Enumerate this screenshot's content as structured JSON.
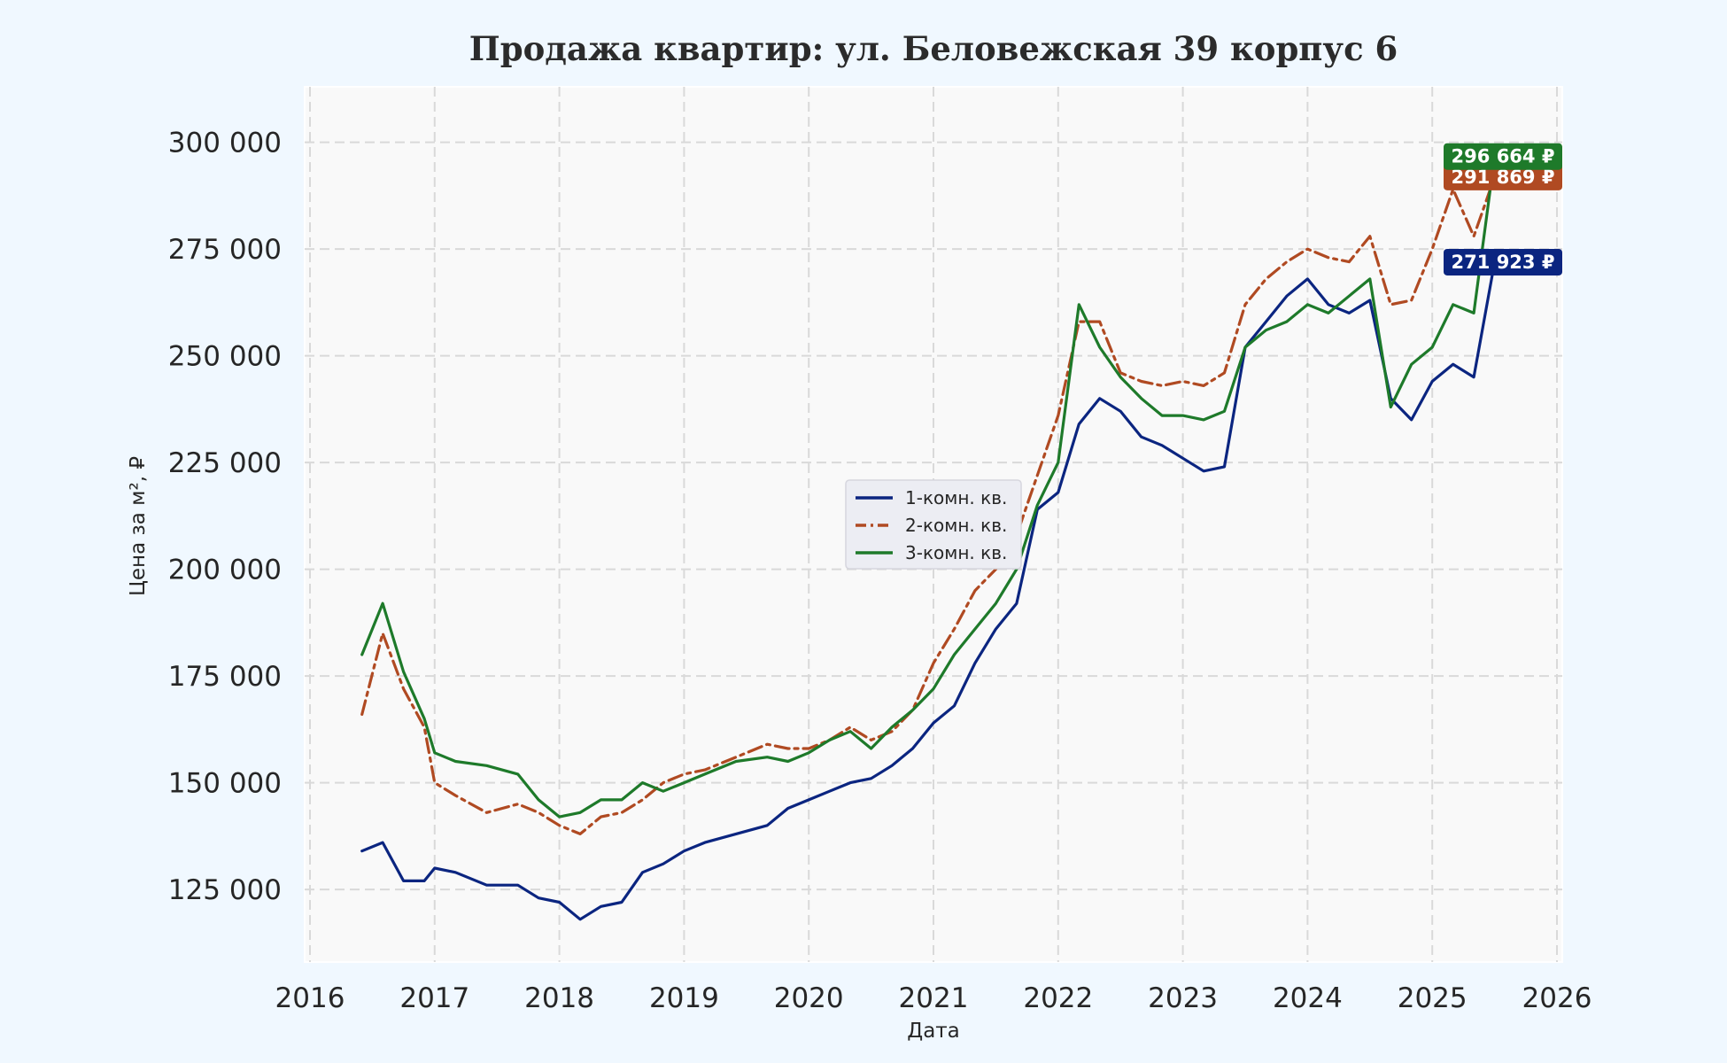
{
  "chart_data": {
    "type": "line",
    "title": "Продажа квартир: ул. Беловежская 39 корпус 6",
    "xlabel": "Дата",
    "ylabel": "Цена за м², ₽",
    "x_ticks": [
      "2016",
      "2017",
      "2018",
      "2019",
      "2020",
      "2021",
      "2022",
      "2023",
      "2024",
      "2025",
      "2026"
    ],
    "y_ticks": [
      "125 000",
      "150 000",
      "175 000",
      "200 000",
      "225 000",
      "250 000",
      "275 000",
      "300 000"
    ],
    "y_tick_values": [
      125000,
      150000,
      175000,
      200000,
      225000,
      250000,
      275000,
      300000
    ],
    "xlim": [
      "2016-01-01",
      "2026-01-01"
    ],
    "ylim": [
      108000,
      313000
    ],
    "grid": true,
    "legend_position": "center",
    "series": [
      {
        "name": "1-комн. кв.",
        "color": "#0b2580",
        "dash": "solid",
        "last_label": "271 923 ₽",
        "x": [
          "2016-06",
          "2016-08",
          "2016-10",
          "2016-12",
          "2017-01",
          "2017-03",
          "2017-06",
          "2017-09",
          "2017-11",
          "2018-01",
          "2018-03",
          "2018-05",
          "2018-07",
          "2018-09",
          "2018-11",
          "2019-01",
          "2019-03",
          "2019-06",
          "2019-09",
          "2019-11",
          "2020-01",
          "2020-03",
          "2020-05",
          "2020-07",
          "2020-09",
          "2020-11",
          "2021-01",
          "2021-03",
          "2021-05",
          "2021-07",
          "2021-09",
          "2021-11",
          "2022-01",
          "2022-03",
          "2022-05",
          "2022-07",
          "2022-09",
          "2022-11",
          "2023-01",
          "2023-03",
          "2023-05",
          "2023-07",
          "2023-09",
          "2023-11",
          "2024-01",
          "2024-03",
          "2024-05",
          "2024-07",
          "2024-09",
          "2024-11",
          "2025-01",
          "2025-03",
          "2025-05",
          "2025-07"
        ],
        "values": [
          134000,
          136000,
          127000,
          127000,
          130000,
          129000,
          126000,
          126000,
          123000,
          122000,
          118000,
          121000,
          122000,
          129000,
          131000,
          134000,
          136000,
          138000,
          140000,
          144000,
          146000,
          148000,
          150000,
          151000,
          154000,
          158000,
          164000,
          168000,
          178000,
          186000,
          192000,
          214000,
          218000,
          234000,
          240000,
          237000,
          231000,
          229000,
          226000,
          223000,
          224000,
          252000,
          258000,
          264000,
          268000,
          262000,
          260000,
          263000,
          240000,
          235000,
          244000,
          248000,
          245000,
          271923
        ]
      },
      {
        "name": "2-комн. кв.",
        "color": "#b04a22",
        "dash": "dashdot",
        "last_label": "291 869 ₽",
        "x": [
          "2016-06",
          "2016-08",
          "2016-10",
          "2016-12",
          "2017-01",
          "2017-03",
          "2017-06",
          "2017-09",
          "2017-11",
          "2018-01",
          "2018-03",
          "2018-05",
          "2018-07",
          "2018-09",
          "2018-11",
          "2019-01",
          "2019-03",
          "2019-06",
          "2019-09",
          "2019-11",
          "2020-01",
          "2020-03",
          "2020-05",
          "2020-07",
          "2020-09",
          "2020-11",
          "2021-01",
          "2021-03",
          "2021-05",
          "2021-07",
          "2021-09",
          "2021-11",
          "2022-01",
          "2022-03",
          "2022-05",
          "2022-07",
          "2022-09",
          "2022-11",
          "2023-01",
          "2023-03",
          "2023-05",
          "2023-07",
          "2023-09",
          "2023-11",
          "2024-01",
          "2024-03",
          "2024-05",
          "2024-07",
          "2024-09",
          "2024-11",
          "2025-01",
          "2025-03",
          "2025-05",
          "2025-07"
        ],
        "values": [
          166000,
          185000,
          172000,
          163000,
          150000,
          147000,
          143000,
          145000,
          143000,
          140000,
          138000,
          142000,
          143000,
          146000,
          150000,
          152000,
          153000,
          156000,
          159000,
          158000,
          158000,
          160000,
          163000,
          160000,
          162000,
          167000,
          178000,
          186000,
          195000,
          200000,
          208000,
          222000,
          236000,
          258000,
          258000,
          246000,
          244000,
          243000,
          244000,
          243000,
          246000,
          262000,
          268000,
          272000,
          275000,
          273000,
          272000,
          278000,
          262000,
          263000,
          275000,
          289000,
          278000,
          291869
        ]
      },
      {
        "name": "3-комн. кв.",
        "color": "#1e7a2a",
        "dash": "solid",
        "last_label": "296 664 ₽",
        "x": [
          "2016-06",
          "2016-08",
          "2016-10",
          "2016-12",
          "2017-01",
          "2017-03",
          "2017-06",
          "2017-09",
          "2017-11",
          "2018-01",
          "2018-03",
          "2018-05",
          "2018-07",
          "2018-09",
          "2018-11",
          "2019-01",
          "2019-03",
          "2019-06",
          "2019-09",
          "2019-11",
          "2020-01",
          "2020-03",
          "2020-05",
          "2020-07",
          "2020-09",
          "2020-11",
          "2021-01",
          "2021-03",
          "2021-05",
          "2021-07",
          "2021-09",
          "2021-11",
          "2022-01",
          "2022-03",
          "2022-05",
          "2022-07",
          "2022-09",
          "2022-11",
          "2023-01",
          "2023-03",
          "2023-05",
          "2023-07",
          "2023-09",
          "2023-11",
          "2024-01",
          "2024-03",
          "2024-05",
          "2024-07",
          "2024-09",
          "2024-11",
          "2025-01",
          "2025-03",
          "2025-05",
          "2025-07"
        ],
        "values": [
          180000,
          192000,
          176000,
          165000,
          157000,
          155000,
          154000,
          152000,
          146000,
          142000,
          143000,
          146000,
          146000,
          150000,
          148000,
          150000,
          152000,
          155000,
          156000,
          155000,
          157000,
          160000,
          162000,
          158000,
          163000,
          167000,
          172000,
          180000,
          186000,
          192000,
          200000,
          215000,
          225000,
          262000,
          252000,
          245000,
          240000,
          236000,
          236000,
          235000,
          237000,
          252000,
          256000,
          258000,
          262000,
          260000,
          264000,
          268000,
          238000,
          248000,
          252000,
          262000,
          260000,
          296664
        ]
      }
    ]
  }
}
